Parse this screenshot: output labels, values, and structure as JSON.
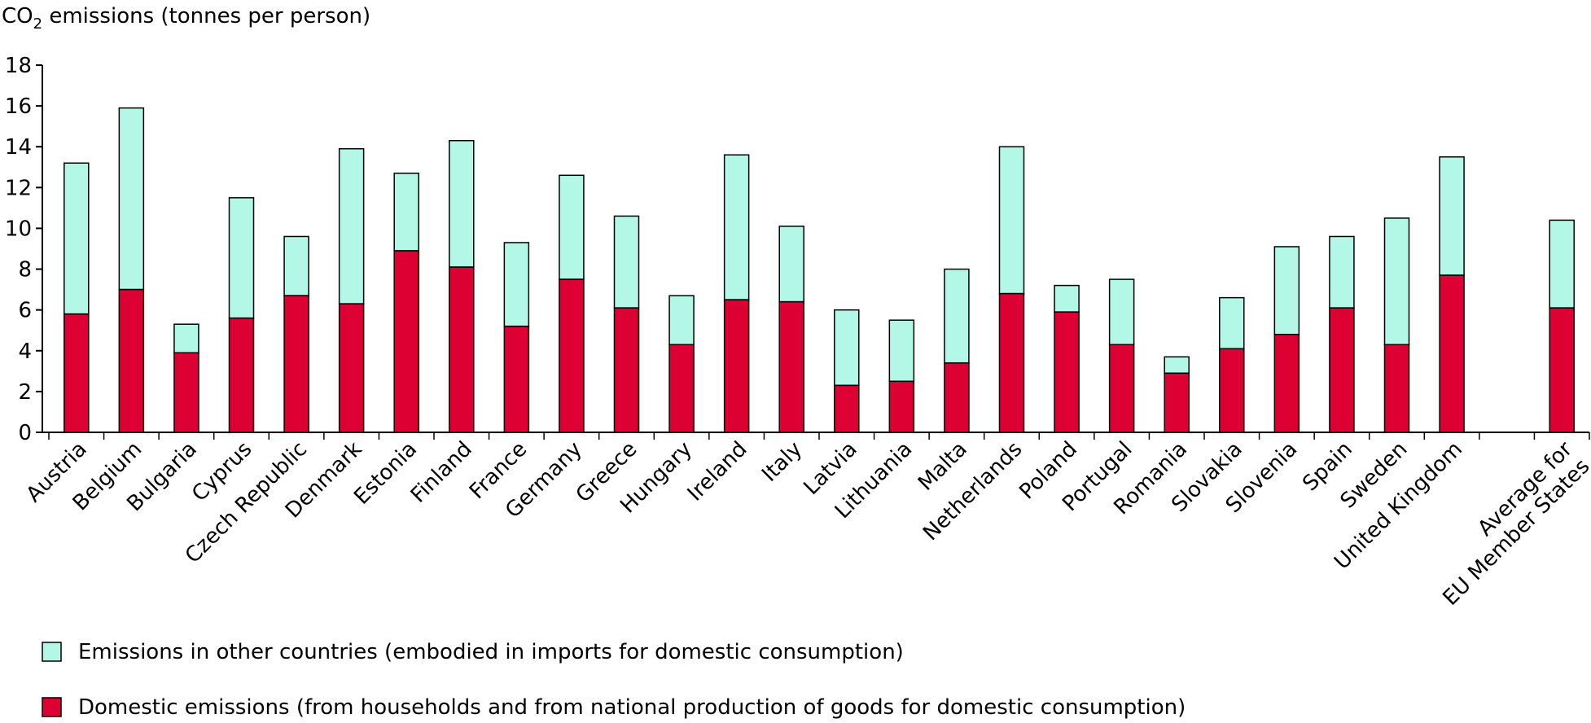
{
  "chart_data": {
    "type": "bar",
    "stacked": true,
    "ylabel_main": "CO",
    "ylabel_sub": "2",
    "ylabel_rest": " emissions (tonnes per person)",
    "ylim": [
      0,
      18
    ],
    "yticks": [
      "0",
      "2",
      "4",
      "6",
      "8",
      "10",
      "12",
      "14",
      "16",
      "18"
    ],
    "grid": false,
    "legend_position": "bottom-left",
    "categories": [
      "Austria",
      "Belgium",
      "Bulgaria",
      "Cyprus",
      "Czech Republic",
      "Denmark",
      "Estonia",
      "Finland",
      "France",
      "Germany",
      "Greece",
      "Hungary",
      "Ireland",
      "Italy",
      "Latvia",
      "Lithuania",
      "Malta",
      "Netherlands",
      "Poland",
      "Portugal",
      "Romania",
      "Slovakia",
      "Slovenia",
      "Spain",
      "Sweden",
      "United Kingdom",
      "",
      "Average for\nEU Member States"
    ],
    "series": [
      {
        "name": "Domestic emissions (from households and from national production of goods for domestic consumption)",
        "color": "#dc0033",
        "values": [
          5.8,
          7.0,
          3.9,
          5.6,
          6.7,
          6.3,
          8.9,
          8.1,
          5.2,
          7.5,
          6.1,
          4.3,
          6.5,
          6.4,
          2.3,
          2.5,
          3.4,
          6.8,
          5.9,
          4.3,
          2.9,
          4.1,
          4.8,
          6.1,
          4.3,
          7.7,
          null,
          6.1
        ]
      },
      {
        "name": "Emissions in other countries (embodied in imports for domestic consumption)",
        "color": "#b3f7e6",
        "values": [
          7.4,
          8.9,
          1.4,
          5.9,
          2.9,
          7.6,
          3.8,
          6.2,
          4.1,
          5.1,
          4.5,
          2.4,
          7.1,
          3.7,
          3.7,
          3.0,
          4.6,
          7.2,
          1.3,
          3.2,
          0.8,
          2.5,
          4.3,
          3.5,
          6.2,
          5.8,
          null,
          4.3
        ]
      }
    ]
  },
  "legend": {
    "items": [
      {
        "label": "Emissions in other countries (embodied in imports for domestic consumption)",
        "color": "#b3f7e6"
      },
      {
        "label": "Domestic emissions (from households and from national production of goods for domestic consumption)",
        "color": "#dc0033"
      }
    ]
  }
}
